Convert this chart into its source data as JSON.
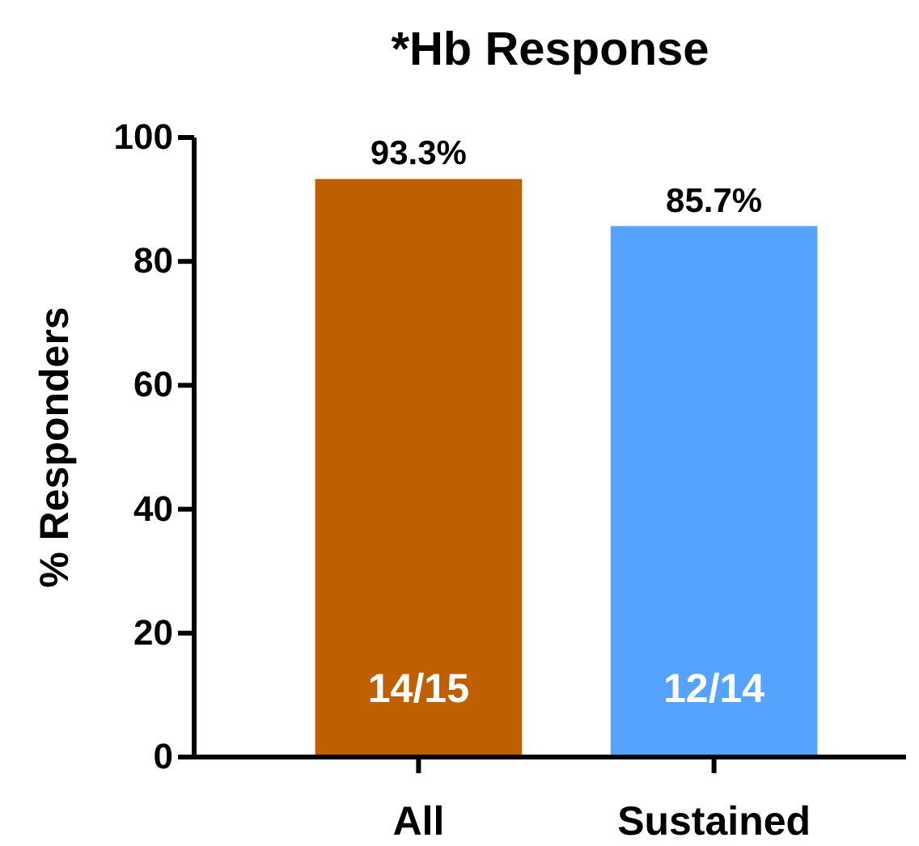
{
  "chart_data": {
    "type": "bar",
    "title": "*Hb Response",
    "ylabel": "% Responders",
    "categories": [
      "All",
      "Sustained"
    ],
    "values": [
      93.3,
      85.7
    ],
    "colors": [
      "#c05f00",
      "#55a3ff"
    ],
    "value_labels": [
      "93.3%",
      "85.7%"
    ],
    "annotations": [
      "14/15",
      "12/14"
    ],
    "ylim": [
      0,
      100
    ],
    "yticks": [
      0,
      20,
      40,
      60,
      80,
      100
    ],
    "grid": false
  }
}
